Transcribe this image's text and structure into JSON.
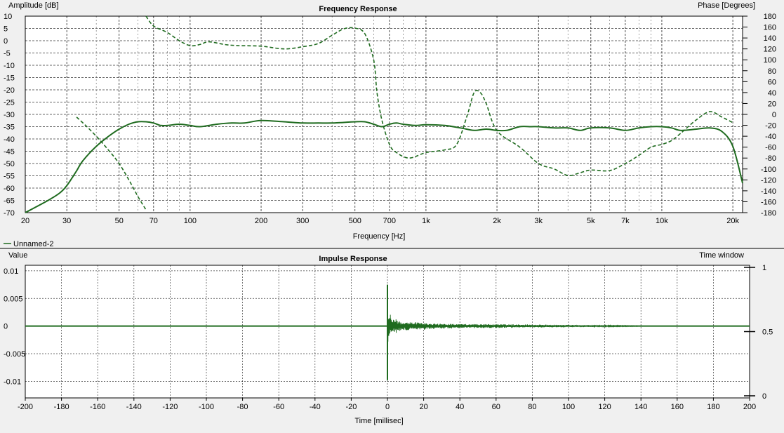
{
  "colors": {
    "background": "#f0f0f0",
    "plot_bg": "#ffffff",
    "grid": "#000000",
    "trace": "#1f6b1f",
    "divider": "#000000"
  },
  "legend": {
    "label": "Unnamed-2",
    "color": "#1f6b1f",
    "placement": "below-top-chart-left"
  },
  "chart_data": [
    {
      "type": "line",
      "title": "Frequency Response",
      "xlabel": "Frequency [Hz]",
      "ylabel": "Amplitude [dB]",
      "y2label": "Phase [Degrees]",
      "xscale": "log",
      "xlim": [
        20,
        22000
      ],
      "ylim": [
        -70,
        10
      ],
      "y2lim": [
        -180,
        180
      ],
      "grid": true,
      "x_ticks": [
        {
          "v": 20,
          "label": "20"
        },
        {
          "v": 30,
          "label": "30"
        },
        {
          "v": 50,
          "label": "50"
        },
        {
          "v": 70,
          "label": "70"
        },
        {
          "v": 100,
          "label": "100"
        },
        {
          "v": 200,
          "label": "200"
        },
        {
          "v": 300,
          "label": "300"
        },
        {
          "v": 500,
          "label": "500"
        },
        {
          "v": 700,
          "label": "700"
        },
        {
          "v": 1000,
          "label": "1k"
        },
        {
          "v": 2000,
          "label": "2k"
        },
        {
          "v": 3000,
          "label": "3k"
        },
        {
          "v": 5000,
          "label": "5k"
        },
        {
          "v": 7000,
          "label": "7k"
        },
        {
          "v": 10000,
          "label": "10k"
        },
        {
          "v": 20000,
          "label": "20k"
        }
      ],
      "y_ticks": [
        "10",
        "5",
        "0",
        "-5",
        "-10",
        "-15",
        "-20",
        "-25",
        "-30",
        "-35",
        "-40",
        "-45",
        "-50",
        "-55",
        "-60",
        "-65",
        "-70"
      ],
      "y2_ticks": [
        "180",
        "160",
        "140",
        "120",
        "100",
        "80",
        "60",
        "40",
        "20",
        "0",
        "-20",
        "-40",
        "-60",
        "-80",
        "-100",
        "-120",
        "-140",
        "-160",
        "-180"
      ],
      "series": [
        {
          "name": "Unnamed-2",
          "role": "magnitude",
          "style": "solid",
          "axis": "left",
          "points": [
            [
              20,
              -70
            ],
            [
              25,
              -65
            ],
            [
              28,
              -62
            ],
            [
              30,
              -59
            ],
            [
              33,
              -53
            ],
            [
              35,
              -49
            ],
            [
              40,
              -43
            ],
            [
              45,
              -39
            ],
            [
              50,
              -36
            ],
            [
              55,
              -34
            ],
            [
              60,
              -33
            ],
            [
              65,
              -33
            ],
            [
              70,
              -33.5
            ],
            [
              75,
              -34.5
            ],
            [
              80,
              -34.5
            ],
            [
              90,
              -34
            ],
            [
              100,
              -34.5
            ],
            [
              110,
              -35
            ],
            [
              130,
              -34
            ],
            [
              150,
              -33.5
            ],
            [
              170,
              -33.5
            ],
            [
              200,
              -32.5
            ],
            [
              250,
              -33
            ],
            [
              300,
              -33.5
            ],
            [
              350,
              -33.5
            ],
            [
              400,
              -33.5
            ],
            [
              500,
              -33
            ],
            [
              550,
              -33
            ],
            [
              600,
              -34
            ],
            [
              650,
              -35
            ],
            [
              700,
              -34
            ],
            [
              750,
              -33.5
            ],
            [
              800,
              -34
            ],
            [
              900,
              -34.5
            ],
            [
              1000,
              -34.2
            ],
            [
              1200,
              -34.5
            ],
            [
              1400,
              -35.5
            ],
            [
              1600,
              -36.5
            ],
            [
              1800,
              -36
            ],
            [
              2000,
              -36.5
            ],
            [
              2200,
              -36.5
            ],
            [
              2500,
              -35
            ],
            [
              2800,
              -35
            ],
            [
              3000,
              -35
            ],
            [
              3500,
              -35.5
            ],
            [
              4000,
              -35.5
            ],
            [
              4500,
              -36.5
            ],
            [
              5000,
              -35.5
            ],
            [
              6000,
              -35.5
            ],
            [
              7000,
              -36.5
            ],
            [
              8000,
              -35.5
            ],
            [
              9000,
              -35
            ],
            [
              10000,
              -35
            ],
            [
              11000,
              -35.5
            ],
            [
              12000,
              -36.5
            ],
            [
              14000,
              -36
            ],
            [
              16000,
              -35.5
            ],
            [
              18000,
              -37
            ],
            [
              20000,
              -43
            ],
            [
              22000,
              -58
            ]
          ]
        },
        {
          "name": "Unnamed-2",
          "role": "phase",
          "style": "dashed",
          "axis": "right",
          "segments": [
            [
              [
                33,
                -5
              ],
              [
                36,
                -20
              ],
              [
                40,
                -40
              ],
              [
                45,
                -65
              ],
              [
                50,
                -90
              ],
              [
                55,
                -120
              ],
              [
                60,
                -150
              ],
              [
                65,
                -175
              ]
            ],
            [
              [
                65,
                180
              ],
              [
                70,
                162
              ],
              [
                80,
                150
              ],
              [
                90,
                135
              ],
              [
                100,
                126
              ],
              [
                110,
                128
              ],
              [
                120,
                133
              ],
              [
                140,
                128
              ],
              [
                160,
                126
              ],
              [
                200,
                125
              ],
              [
                250,
                120
              ],
              [
                300,
                124
              ],
              [
                350,
                130
              ],
              [
                400,
                145
              ],
              [
                450,
                157
              ],
              [
                500,
                158
              ],
              [
                550,
                148
              ],
              [
                600,
                100
              ],
              [
                620,
                40
              ],
              [
                650,
                -10
              ],
              [
                700,
                -55
              ],
              [
                750,
                -70
              ],
              [
                850,
                -80
              ],
              [
                1000,
                -70
              ],
              [
                1200,
                -65
              ],
              [
                1350,
                -55
              ],
              [
                1500,
                0
              ],
              [
                1600,
                40
              ],
              [
                1700,
                40
              ],
              [
                1800,
                20
              ],
              [
                2000,
                -30
              ],
              [
                2500,
                -60
              ],
              [
                3000,
                -90
              ],
              [
                3500,
                -100
              ],
              [
                4000,
                -112
              ],
              [
                4500,
                -107
              ],
              [
                5000,
                -102
              ],
              [
                6000,
                -103
              ],
              [
                7000,
                -90
              ],
              [
                8000,
                -75
              ],
              [
                9000,
                -60
              ],
              [
                10000,
                -55
              ],
              [
                11000,
                -48
              ],
              [
                12000,
                -35
              ],
              [
                14000,
                -10
              ],
              [
                16000,
                5
              ],
              [
                18000,
                -5
              ],
              [
                20000,
                -15
              ]
            ]
          ]
        }
      ]
    },
    {
      "type": "line",
      "title": "Impulse Response",
      "xlabel": "Time [millisec]",
      "ylabel": "Value",
      "y2label": "Time window",
      "xlim": [
        -200,
        200
      ],
      "ylim": [
        -0.013,
        0.011
      ],
      "y2lim": [
        0,
        1
      ],
      "grid": true,
      "x_ticks": [
        "-200",
        "-180",
        "-160",
        "-140",
        "-120",
        "-100",
        "-80",
        "-60",
        "-40",
        "-20",
        "0",
        "20",
        "40",
        "60",
        "80",
        "100",
        "120",
        "140",
        "160",
        "180",
        "200"
      ],
      "y_ticks": [
        {
          "v": 0.01,
          "label": "0.01"
        },
        {
          "v": 0.005,
          "label": "0.005"
        },
        {
          "v": 0,
          "label": "0"
        },
        {
          "v": -0.005,
          "label": "-0.005"
        },
        {
          "v": -0.01,
          "label": "-0.01"
        }
      ],
      "y2_ticks": [
        {
          "v": 1,
          "label": "1"
        },
        {
          "v": 0.5,
          "label": "0.5"
        },
        {
          "v": 0,
          "label": "0"
        }
      ],
      "series": [
        {
          "name": "Unnamed-2",
          "peak": {
            "t": 0,
            "max": 0.0075,
            "min": -0.0098
          },
          "decay_envelope": [
            [
              0,
              0.0075
            ],
            [
              0.5,
              0.0035
            ],
            [
              1.5,
              0.0022
            ],
            [
              3,
              0.0016
            ],
            [
              6,
              0.0012
            ],
            [
              10,
              0.0009
            ],
            [
              15,
              0.0008
            ],
            [
              20,
              0.0007
            ],
            [
              30,
              0.0005
            ],
            [
              45,
              0.0004
            ],
            [
              60,
              0.0004
            ],
            [
              80,
              0.0003
            ],
            [
              100,
              0.00025
            ],
            [
              110,
              0.0002
            ],
            [
              120,
              0.00015
            ],
            [
              125,
              0.0001
            ],
            [
              140,
              5e-05
            ]
          ]
        }
      ]
    }
  ]
}
